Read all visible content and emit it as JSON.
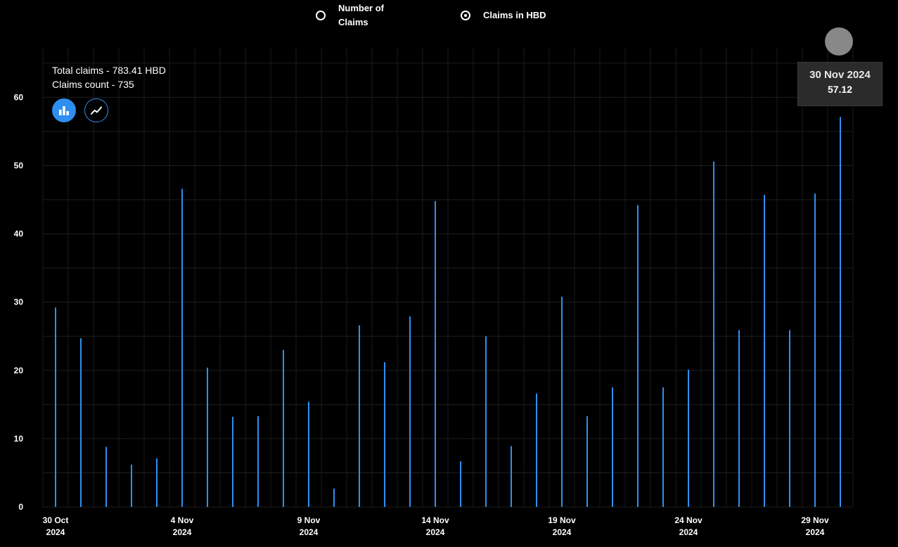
{
  "toggle": {
    "options": [
      {
        "label": "Number of Claims",
        "selected": false
      },
      {
        "label": "Claims in HBD",
        "selected": true
      }
    ]
  },
  "summary": {
    "total_claims": "Total claims - 783.41 HBD",
    "claims_count": "Claims count - 735"
  },
  "view_buttons": {
    "bar_icon": "bar-chart-icon",
    "line_icon": "line-chart-icon",
    "active": "bar"
  },
  "tooltip": {
    "date": "30 Nov 2024",
    "value": "57.12"
  },
  "colors": {
    "bar": "#2f8ff0",
    "background": "#000000",
    "grid": "#1f1f1f"
  },
  "chart_data": {
    "type": "bar",
    "title": "",
    "xlabel": "",
    "ylabel": "",
    "ylim": [
      0,
      60
    ],
    "yticks": [
      0,
      10,
      20,
      30,
      40,
      50,
      60
    ],
    "grid": true,
    "x_tick_labels": [
      {
        "index": 0,
        "day": "30 Oct",
        "year": "2024"
      },
      {
        "index": 5,
        "day": "4 Nov",
        "year": "2024"
      },
      {
        "index": 10,
        "day": "9 Nov",
        "year": "2024"
      },
      {
        "index": 15,
        "day": "14 Nov",
        "year": "2024"
      },
      {
        "index": 20,
        "day": "19 Nov",
        "year": "2024"
      },
      {
        "index": 25,
        "day": "24 Nov",
        "year": "2024"
      },
      {
        "index": 30,
        "day": "29 Nov",
        "year": "2024"
      }
    ],
    "categories": [
      "30 Oct 2024",
      "31 Oct 2024",
      "1 Nov 2024",
      "2 Nov 2024",
      "3 Nov 2024",
      "4 Nov 2024",
      "5 Nov 2024",
      "6 Nov 2024",
      "7 Nov 2024",
      "8 Nov 2024",
      "9 Nov 2024",
      "10 Nov 2024",
      "11 Nov 2024",
      "12 Nov 2024",
      "13 Nov 2024",
      "14 Nov 2024",
      "15 Nov 2024",
      "16 Nov 2024",
      "17 Nov 2024",
      "18 Nov 2024",
      "19 Nov 2024",
      "20 Nov 2024",
      "21 Nov 2024",
      "22 Nov 2024",
      "23 Nov 2024",
      "24 Nov 2024",
      "25 Nov 2024",
      "26 Nov 2024",
      "27 Nov 2024",
      "28 Nov 2024",
      "29 Nov 2024",
      "30 Nov 2024"
    ],
    "values": [
      29.2,
      24.7,
      8.8,
      6.2,
      7.1,
      46.6,
      20.4,
      13.2,
      13.3,
      23.0,
      15.4,
      2.7,
      26.6,
      21.2,
      27.9,
      44.8,
      6.7,
      25.0,
      8.9,
      16.6,
      30.8,
      13.3,
      17.5,
      44.2,
      17.5,
      20.1,
      50.6,
      25.9,
      45.7,
      25.9,
      45.9,
      57.12
    ]
  }
}
